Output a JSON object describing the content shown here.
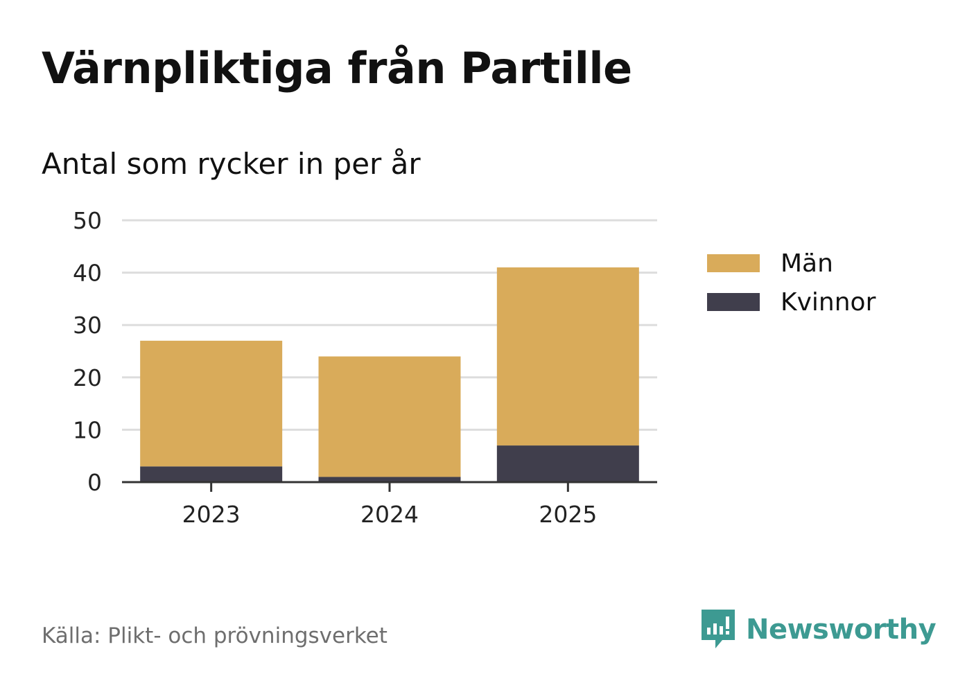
{
  "title": "Värnpliktiga från Partille",
  "subtitle": "Antal som rycker in per år",
  "source": "Källa: Plikt- och prövningsverket",
  "brand": {
    "name": "Newsworthy",
    "icon": "newsworthy-logo-icon"
  },
  "colors": {
    "men": "#d9ab5a",
    "women": "#403e4c",
    "grid": "#dddddd",
    "axis": "#333333",
    "brand": "#3d9a92"
  },
  "chart_data": {
    "type": "bar",
    "stacked": true,
    "categories": [
      "2023",
      "2024",
      "2025"
    ],
    "series": [
      {
        "name": "Kvinnor",
        "values": [
          3,
          1,
          7
        ]
      },
      {
        "name": "Män",
        "values": [
          24,
          23,
          34
        ]
      }
    ],
    "legend": [
      "Män",
      "Kvinnor"
    ],
    "legend_position": "right",
    "ylim": [
      0,
      50
    ],
    "yticks": [
      "0",
      "10",
      "20",
      "30",
      "40",
      "50"
    ],
    "grid": true
  }
}
